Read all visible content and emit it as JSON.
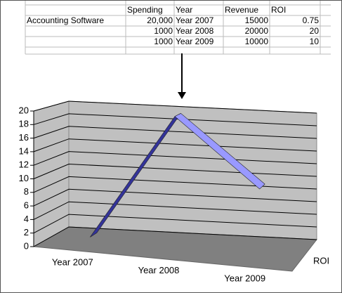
{
  "table": {
    "columns": [
      null,
      "Spending",
      "Year",
      "Revenue",
      "ROI"
    ],
    "rows": [
      [
        "Accounting Software",
        "20,000",
        "Year 2007",
        "15000",
        "0.75"
      ],
      [
        null,
        "1000",
        "Year 2008",
        "20000",
        "20"
      ],
      [
        null,
        "1000",
        "Year 2009",
        "10000",
        "10"
      ]
    ]
  },
  "chart_data": {
    "type": "line3d",
    "categories": [
      "Year 2007",
      "Year 2008",
      "Year 2009"
    ],
    "series": [
      {
        "name": "ROI",
        "colors": [
          "#333399",
          "#9999ff"
        ],
        "values": [
          0.75,
          20,
          10
        ]
      }
    ],
    "ylim": [
      0,
      20
    ],
    "yticks": [
      0,
      2,
      4,
      6,
      8,
      10,
      12,
      14,
      16,
      18,
      20
    ],
    "grid": true
  }
}
